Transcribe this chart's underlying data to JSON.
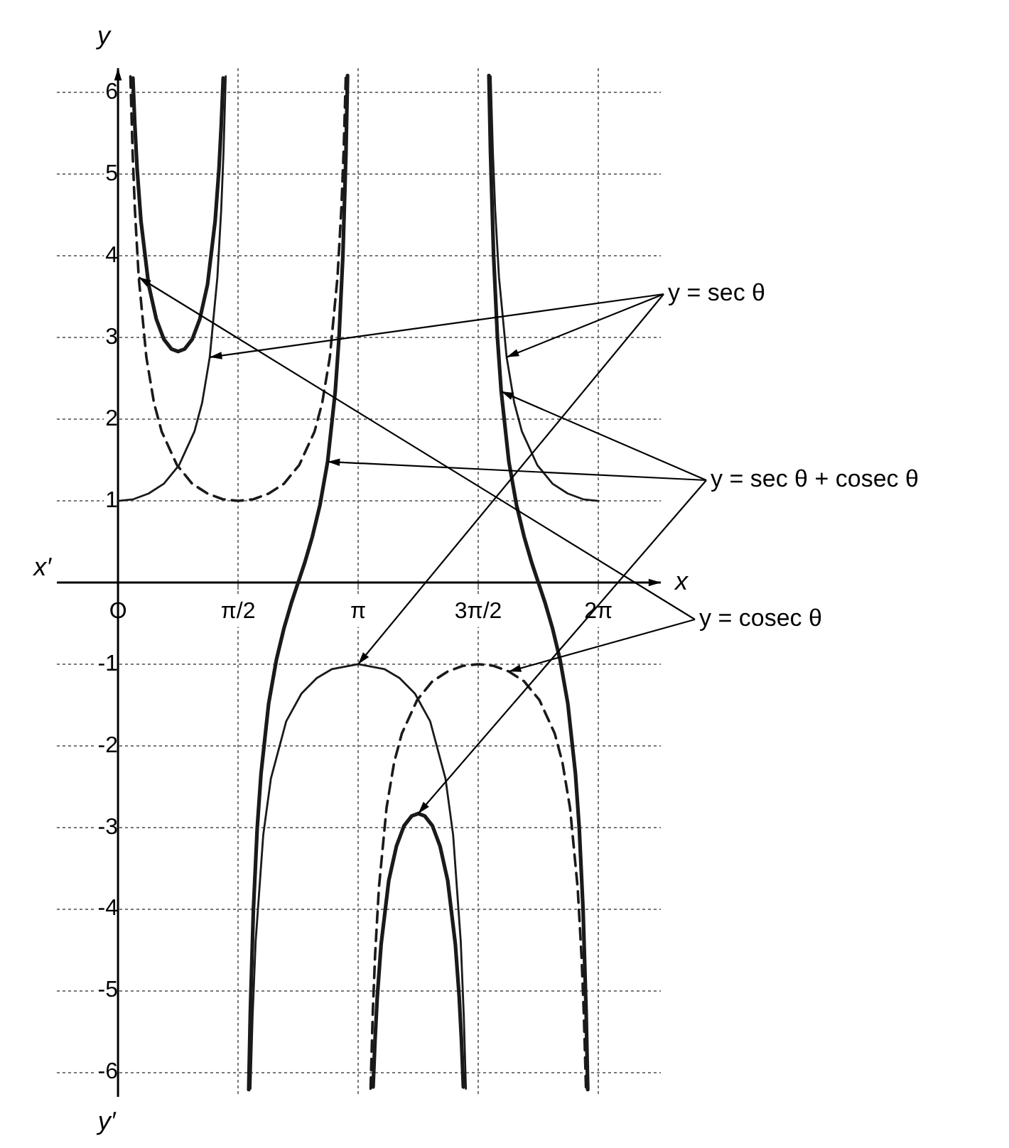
{
  "chart_data": {
    "type": "line",
    "xlabel": "x",
    "ylabel": "y",
    "annotations": [
      "x′",
      "y′"
    ],
    "xlim": [
      -0.8,
      7.1
    ],
    "ylim": [
      -6.3,
      6.3
    ],
    "xticks": [
      {
        "value": 0,
        "label": "O"
      },
      {
        "value": 1.5708,
        "label": "π/2"
      },
      {
        "value": 3.1416,
        "label": "π"
      },
      {
        "value": 4.7124,
        "label": "3π/2"
      },
      {
        "value": 6.2832,
        "label": "2π"
      }
    ],
    "yticks": [
      -6,
      -5,
      -4,
      -3,
      -2,
      -1,
      {
        "value": 0,
        "label": null
      },
      1,
      2,
      3,
      4,
      5,
      6
    ],
    "grid": true,
    "marker": "none",
    "series": [
      {
        "name": "y = sec θ",
        "color": "#1a1a1a",
        "line_style": "solid",
        "x": [
          0,
          0.2,
          0.4,
          0.6,
          0.8,
          1.0,
          1.1,
          1.2,
          1.3,
          1.35,
          1.38,
          1.4087,
          1.5708,
          1.7329,
          1.76,
          1.8,
          1.9,
          2.0,
          2.2,
          2.4,
          2.6,
          2.8,
          3.1416,
          3.4832,
          3.6832,
          3.8832,
          4.0832,
          4.2832,
          4.3832,
          4.4832,
          4.5232,
          4.5503,
          4.7124,
          4.8745,
          4.9032,
          4.9332,
          4.9832,
          5.0832,
          5.1832,
          5.2832,
          5.4832,
          5.6832,
          5.8832,
          6.0832,
          6.2832
        ],
        "values": [
          1,
          1.02,
          1.09,
          1.21,
          1.44,
          1.85,
          2.2,
          2.76,
          3.74,
          4.57,
          5.27,
          6.2,
          null,
          -6.2,
          -5.32,
          -4.4,
          -3.09,
          -2.4,
          -1.7,
          -1.36,
          -1.17,
          -1.06,
          -1,
          -1.06,
          -1.17,
          -1.36,
          -1.7,
          -2.4,
          -3.09,
          -4.4,
          -5.32,
          -6.2,
          null,
          6.2,
          5.27,
          4.57,
          3.74,
          2.76,
          2.2,
          1.85,
          1.44,
          1.21,
          1.09,
          1.02,
          1
        ]
      },
      {
        "name": "y = cosec θ",
        "color": "#1a1a1a",
        "line_style": "dashed",
        "x": [
          0.1621,
          0.1908,
          0.2208,
          0.2708,
          0.3708,
          0.4708,
          0.5708,
          0.7708,
          0.9708,
          1.1708,
          1.3708,
          1.5708,
          1.7708,
          1.9708,
          2.1708,
          2.3708,
          2.5708,
          2.6708,
          2.7708,
          2.8708,
          2.9208,
          2.9508,
          2.9795,
          3.1416,
          3.3037,
          3.3324,
          3.3624,
          3.4124,
          3.5124,
          3.6124,
          3.7124,
          3.9124,
          4.1124,
          4.3124,
          4.5124,
          4.7124,
          4.9124,
          5.1124,
          5.3124,
          5.5124,
          5.7124,
          5.8124,
          5.9124,
          6.0124,
          6.0624,
          6.0924,
          6.1211
        ],
        "values": [
          6.2,
          5.27,
          4.57,
          3.74,
          2.76,
          2.2,
          1.85,
          1.44,
          1.21,
          1.09,
          1.02,
          1,
          1.02,
          1.09,
          1.21,
          1.44,
          1.85,
          2.2,
          2.76,
          3.74,
          4.57,
          5.27,
          6.2,
          null,
          -6.2,
          -5.27,
          -4.57,
          -3.74,
          -2.76,
          -2.2,
          -1.85,
          -1.44,
          -1.21,
          -1.09,
          -1.02,
          -1,
          -1.02,
          -1.09,
          -1.21,
          -1.44,
          -1.85,
          -2.2,
          -2.76,
          -3.74,
          -4.57,
          -5.27,
          -6.2
        ]
      },
      {
        "name": "y = sec θ + cosec θ",
        "color": "#1a1a1a",
        "line_style": "solid",
        "x": [
          0.195,
          0.22,
          0.25,
          0.3,
          0.4,
          0.5,
          0.6,
          0.7,
          0.7854,
          0.8708,
          0.9708,
          1.0708,
          1.1708,
          1.2708,
          1.3208,
          1.3508,
          1.3758,
          1.5708,
          1.7098,
          1.7308,
          1.7708,
          1.8208,
          1.8708,
          1.9708,
          2.0708,
          2.1708,
          2.2708,
          2.3562,
          2.4416,
          2.5416,
          2.6416,
          2.7416,
          2.8416,
          2.8916,
          2.9416,
          2.9816,
          3.0026,
          3.1416,
          3.3366,
          3.3616,
          3.3916,
          3.4416,
          3.5416,
          3.6416,
          3.7416,
          3.8416,
          3.927,
          4.0124,
          4.1124,
          4.2124,
          4.3124,
          4.4124,
          4.4624,
          4.4924,
          4.5174,
          4.7124,
          4.8514,
          4.8724,
          4.9124,
          4.9624,
          5.0124,
          5.1124,
          5.2124,
          5.3124,
          5.4124,
          5.4978,
          5.5832,
          5.6832,
          5.7832,
          5.8832,
          5.9832,
          6.0332,
          6.0832,
          6.1232,
          6.1442
        ],
        "values": [
          6.18,
          5.61,
          5.07,
          4.43,
          3.65,
          3.23,
          2.98,
          2.86,
          2.83,
          2.86,
          2.98,
          3.23,
          3.65,
          4.43,
          5.07,
          5.61,
          6.18,
          null,
          -6.21,
          -5.26,
          -4.01,
          -3.01,
          -2.34,
          -1.48,
          -0.95,
          -0.56,
          -0.24,
          0,
          0.24,
          0.56,
          0.95,
          1.48,
          2.34,
          3.01,
          4.01,
          5.26,
          6.21,
          null,
          -6.18,
          -5.61,
          -5.07,
          -4.43,
          -3.65,
          -3.23,
          -2.98,
          -2.86,
          -2.83,
          -2.86,
          -2.98,
          -3.23,
          -3.65,
          -4.43,
          -5.07,
          -5.61,
          -6.18,
          null,
          6.21,
          5.26,
          4.01,
          3.01,
          2.34,
          1.48,
          0.95,
          0.56,
          0.24,
          0,
          -0.24,
          -0.56,
          -0.95,
          -1.48,
          -2.34,
          -3.01,
          -4.01,
          -5.26,
          -6.21
        ]
      }
    ]
  }
}
